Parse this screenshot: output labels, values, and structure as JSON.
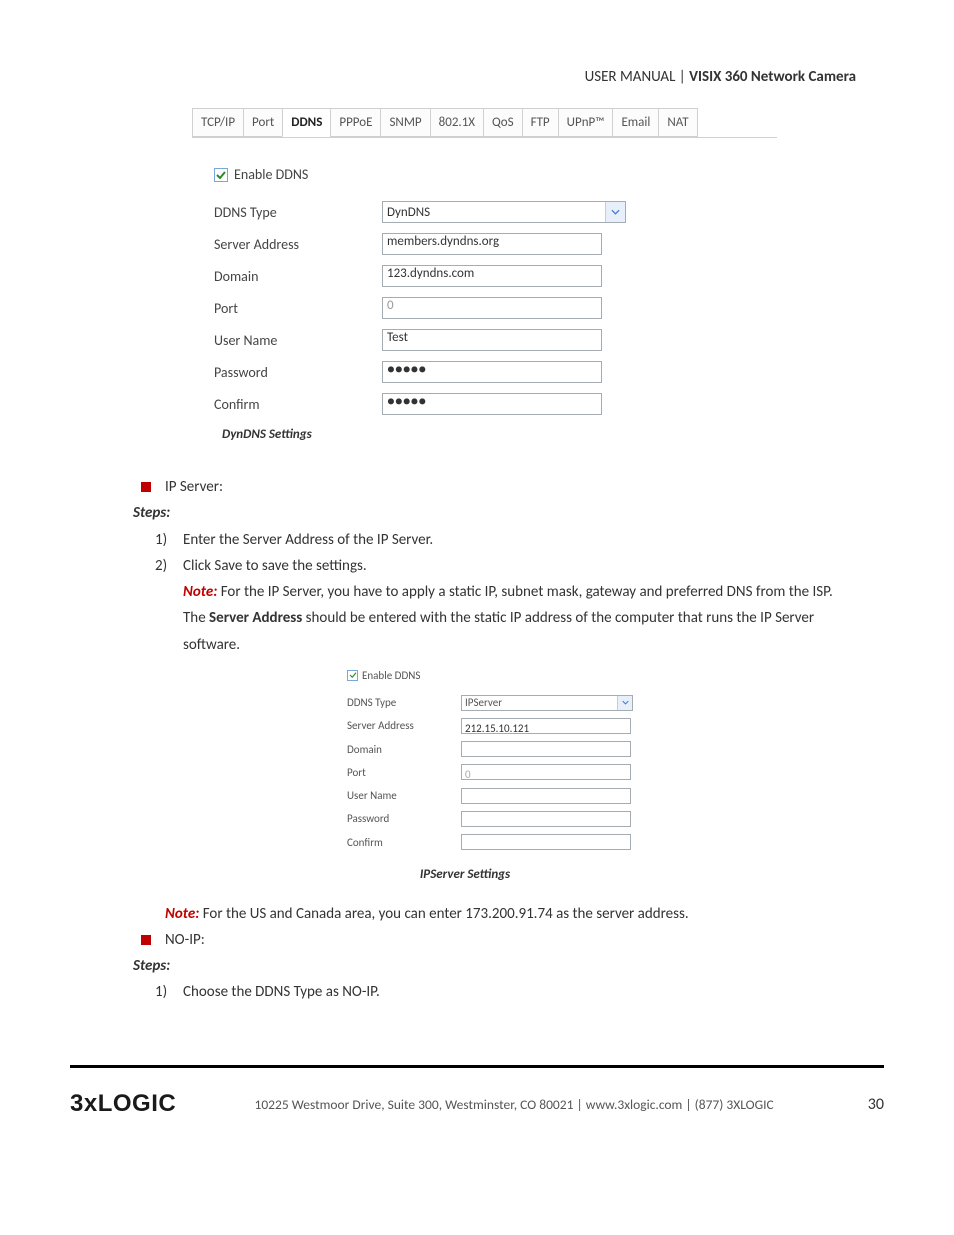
{
  "header": {
    "prefix": "USER MANUAL | ",
    "title": "VISIX 360 Network Camera"
  },
  "tabs": [
    "TCP/IP",
    "Port",
    "DDNS",
    "PPPoE",
    "SNMP",
    "802.1X",
    "QoS",
    "FTP",
    "UPnP™",
    "Email",
    "NAT"
  ],
  "activeTab": "DDNS",
  "screenshot1": {
    "enable_label": "Enable DDNS",
    "rows": {
      "ddns_type": {
        "label": "DDNS Type",
        "value": "DynDNS"
      },
      "server_address": {
        "label": "Server Address",
        "value": "members.dyndns.org"
      },
      "domain": {
        "label": "Domain",
        "value": "123.dyndns.com"
      },
      "port": {
        "label": "Port",
        "value": "0"
      },
      "user_name": {
        "label": "User Name",
        "value": "Test"
      },
      "password": {
        "label": "Password",
        "value": "●●●●●"
      },
      "confirm": {
        "label": "Confirm",
        "value": "●●●●●"
      }
    },
    "caption": "DynDNS Settings"
  },
  "body": {
    "ip_server_label": "IP Server:",
    "steps_label": "Steps:",
    "step1": "Enter the Server Address of the IP Server.",
    "step2": "Click Save to save the settings.",
    "note_label": "Note:",
    "note1a": " For the IP Server, you have to apply a static IP, subnet mask, gateway and preferred DNS from the ISP. The ",
    "server_address_bold": "Server Address",
    "note1b": " should be entered with the static IP address of the computer that runs the IP Server software.",
    "note2": " For the US and Canada area, you can enter 173.200.91.74 as the server address.",
    "noip_label": "NO-IP:",
    "noip_step1": "Choose the DDNS Type as NO-IP."
  },
  "screenshot2": {
    "enable_label": "Enable DDNS",
    "rows": {
      "ddns_type": {
        "label": "DDNS Type",
        "value": "IPServer"
      },
      "server_address": {
        "label": "Server Address",
        "value": "212.15.10.121"
      },
      "domain": {
        "label": "Domain",
        "value": ""
      },
      "port": {
        "label": "Port",
        "value": "0"
      },
      "user_name": {
        "label": "User Name",
        "value": ""
      },
      "password": {
        "label": "Password",
        "value": ""
      },
      "confirm": {
        "label": "Confirm",
        "value": ""
      }
    },
    "caption": "IPServer Settings"
  },
  "footer": {
    "logo": "3xLOGIC",
    "address": "10225 Westmoor Drive, Suite 300, Westminster, CO 80021 | www.3xlogic.com | (877) 3XLOGIC",
    "page": "30"
  }
}
